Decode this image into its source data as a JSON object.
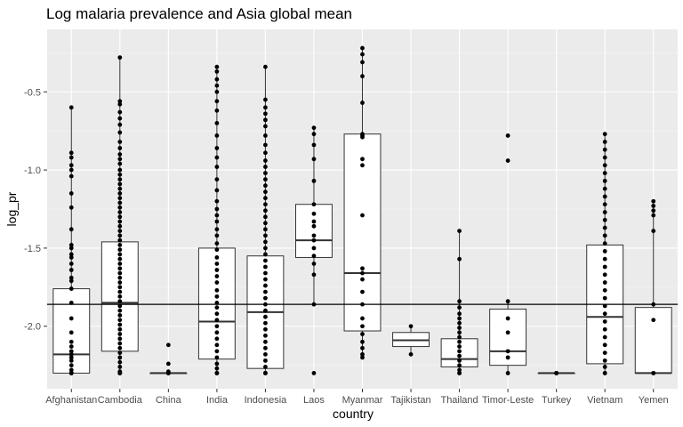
{
  "chart_data": {
    "type": "boxplot",
    "title": "Log malaria prevalence and Asia global mean",
    "xlabel": "country",
    "ylabel": "log_pr",
    "ylim": [
      -2.4,
      -0.1
    ],
    "yticks": [
      -2.0,
      -1.5,
      -1.0,
      -0.5
    ],
    "ytick_labels": [
      "-2.0",
      "-1.5",
      "-1.0",
      "-0.5"
    ],
    "reference_line": -1.86,
    "grid": true,
    "categories": [
      "Afghanistan",
      "Cambodia",
      "China",
      "India",
      "Indonesia",
      "Laos",
      "Myanmar",
      "Tajikistan",
      "Thailand",
      "Timor-Leste",
      "Turkey",
      "Vietnam",
      "Yemen"
    ],
    "boxes": [
      {
        "category": "Afghanistan",
        "whisker_low": -2.3,
        "q1": -2.3,
        "median": -2.18,
        "q3": -1.76,
        "whisker_high": -0.6
      },
      {
        "category": "Cambodia",
        "whisker_low": -2.3,
        "q1": -2.16,
        "median": -1.85,
        "q3": -1.46,
        "whisker_high": -0.28
      },
      {
        "category": "China",
        "whisker_low": -2.3,
        "q1": -2.3,
        "median": -2.3,
        "q3": -2.3,
        "whisker_high": -2.3
      },
      {
        "category": "India",
        "whisker_low": -2.3,
        "q1": -2.21,
        "median": -1.97,
        "q3": -1.5,
        "whisker_high": -0.34
      },
      {
        "category": "Indonesia",
        "whisker_low": -2.3,
        "q1": -2.27,
        "median": -1.91,
        "q3": -1.55,
        "whisker_high": -0.34
      },
      {
        "category": "Laos",
        "whisker_low": -1.86,
        "q1": -1.56,
        "median": -1.45,
        "q3": -1.22,
        "whisker_high": -0.73
      },
      {
        "category": "Myanmar",
        "whisker_low": -2.2,
        "q1": -2.03,
        "median": -1.66,
        "q3": -0.77,
        "whisker_high": -0.22
      },
      {
        "category": "Tajikistan",
        "whisker_low": -2.18,
        "q1": -2.13,
        "median": -2.09,
        "q3": -2.04,
        "whisker_high": -2.0
      },
      {
        "category": "Thailand",
        "whisker_low": -2.3,
        "q1": -2.26,
        "median": -2.21,
        "q3": -2.08,
        "whisker_high": -1.39
      },
      {
        "category": "Timor-Leste",
        "whisker_low": -2.3,
        "q1": -2.25,
        "median": -2.16,
        "q3": -1.89,
        "whisker_high": -1.84
      },
      {
        "category": "Turkey",
        "whisker_low": -2.3,
        "q1": -2.3,
        "median": -2.3,
        "q3": -2.3,
        "whisker_high": -2.3
      },
      {
        "category": "Vietnam",
        "whisker_low": -2.3,
        "q1": -2.24,
        "median": -1.94,
        "q3": -1.48,
        "whisker_high": -0.77
      },
      {
        "category": "Yemen",
        "whisker_low": -2.3,
        "q1": -2.3,
        "median": -2.3,
        "q3": -1.88,
        "whisker_high": -1.2
      }
    ],
    "points": [
      {
        "category": "Afghanistan",
        "values": [
          -0.6,
          -0.89,
          -0.92,
          -0.97,
          -1.0,
          -1.04,
          -1.15,
          -1.24,
          -1.38,
          -1.48,
          -1.5,
          -1.54,
          -1.56,
          -1.6,
          -1.64,
          -1.69,
          -1.71,
          -1.76,
          -1.85,
          -1.95,
          -2.04,
          -2.1,
          -2.13,
          -2.16,
          -2.18,
          -2.2,
          -2.22,
          -2.25,
          -2.28,
          -2.3,
          -2.3,
          -2.3,
          -2.3,
          -2.3
        ]
      },
      {
        "category": "Cambodia",
        "values": [
          -0.28,
          -0.56,
          -0.58,
          -0.63,
          -0.67,
          -0.71,
          -0.76,
          -0.82,
          -0.86,
          -0.9,
          -0.93,
          -0.96,
          -1.0,
          -1.03,
          -1.06,
          -1.09,
          -1.12,
          -1.15,
          -1.18,
          -1.21,
          -1.24,
          -1.27,
          -1.3,
          -1.33,
          -1.36,
          -1.39,
          -1.42,
          -1.45,
          -1.48,
          -1.51,
          -1.54,
          -1.57,
          -1.6,
          -1.63,
          -1.66,
          -1.69,
          -1.72,
          -1.75,
          -1.78,
          -1.81,
          -1.84,
          -1.87,
          -1.9,
          -1.93,
          -1.96,
          -1.99,
          -2.02,
          -2.05,
          -2.08,
          -2.11,
          -2.14,
          -2.17,
          -2.2,
          -2.23,
          -2.26,
          -2.29,
          -2.3,
          -2.3,
          -2.3,
          -2.3
        ]
      },
      {
        "category": "China",
        "values": [
          -2.12,
          -2.24,
          -2.29,
          -2.3,
          -2.3,
          -2.3,
          -2.3
        ]
      },
      {
        "category": "India",
        "values": [
          -0.34,
          -0.37,
          -0.42,
          -0.46,
          -0.5,
          -0.56,
          -0.62,
          -0.7,
          -0.78,
          -0.86,
          -0.92,
          -0.98,
          -1.06,
          -1.13,
          -1.2,
          -1.25,
          -1.29,
          -1.33,
          -1.38,
          -1.42,
          -1.47,
          -1.51,
          -1.56,
          -1.6,
          -1.64,
          -1.68,
          -1.72,
          -1.77,
          -1.81,
          -1.85,
          -1.88,
          -1.92,
          -1.96,
          -2.0,
          -2.04,
          -2.08,
          -2.12,
          -2.16,
          -2.2,
          -2.24,
          -2.27,
          -2.3,
          -2.3,
          -2.3
        ]
      },
      {
        "category": "Indonesia",
        "values": [
          -0.34,
          -0.55,
          -0.6,
          -0.64,
          -0.68,
          -0.72,
          -0.78,
          -0.84,
          -0.89,
          -0.94,
          -0.98,
          -1.02,
          -1.06,
          -1.1,
          -1.14,
          -1.18,
          -1.22,
          -1.26,
          -1.3,
          -1.34,
          -1.38,
          -1.42,
          -1.46,
          -1.5,
          -1.54,
          -1.58,
          -1.62,
          -1.66,
          -1.7,
          -1.74,
          -1.78,
          -1.82,
          -1.86,
          -1.9,
          -1.94,
          -1.98,
          -2.02,
          -2.06,
          -2.1,
          -2.14,
          -2.18,
          -2.22,
          -2.26,
          -2.3,
          -2.3,
          -2.3
        ]
      },
      {
        "category": "Laos",
        "values": [
          -0.73,
          -0.77,
          -0.84,
          -0.93,
          -1.07,
          -1.22,
          -1.28,
          -1.33,
          -1.36,
          -1.42,
          -1.45,
          -1.5,
          -1.55,
          -1.6,
          -1.67,
          -1.86,
          -2.3
        ]
      },
      {
        "category": "Myanmar",
        "values": [
          -0.22,
          -0.26,
          -0.31,
          -0.4,
          -0.57,
          -0.77,
          -0.78,
          -0.79,
          -0.93,
          -0.97,
          -1.29,
          -1.63,
          -1.66,
          -1.7,
          -1.78,
          -1.86,
          -1.95,
          -2.0,
          -2.05,
          -2.1,
          -2.14,
          -2.18,
          -2.2
        ]
      },
      {
        "category": "Tajikistan",
        "values": [
          -2.0,
          -2.18
        ]
      },
      {
        "category": "Thailand",
        "values": [
          -1.39,
          -1.57,
          -1.84,
          -1.88,
          -1.92,
          -1.95,
          -1.98,
          -2.01,
          -2.04,
          -2.07,
          -2.1,
          -2.13,
          -2.16,
          -2.19,
          -2.22,
          -2.25,
          -2.28,
          -2.3,
          -2.3
        ]
      },
      {
        "category": "Timor-Leste",
        "values": [
          -0.78,
          -0.94,
          -1.84,
          -1.95,
          -2.04,
          -2.16,
          -2.2,
          -2.3
        ]
      },
      {
        "category": "Turkey",
        "values": [
          -2.3,
          -2.3,
          -2.3
        ]
      },
      {
        "category": "Vietnam",
        "values": [
          -0.77,
          -0.82,
          -0.87,
          -0.92,
          -0.97,
          -1.02,
          -1.07,
          -1.12,
          -1.17,
          -1.22,
          -1.27,
          -1.32,
          -1.37,
          -1.42,
          -1.47,
          -1.52,
          -1.57,
          -1.62,
          -1.67,
          -1.72,
          -1.77,
          -1.82,
          -1.87,
          -1.92,
          -1.97,
          -2.02,
          -2.07,
          -2.12,
          -2.17,
          -2.22,
          -2.26,
          -2.3,
          -2.3
        ]
      },
      {
        "category": "Yemen",
        "values": [
          -1.2,
          -1.23,
          -1.26,
          -1.29,
          -1.39,
          -1.86,
          -1.96,
          -2.3,
          -2.3
        ]
      }
    ]
  }
}
